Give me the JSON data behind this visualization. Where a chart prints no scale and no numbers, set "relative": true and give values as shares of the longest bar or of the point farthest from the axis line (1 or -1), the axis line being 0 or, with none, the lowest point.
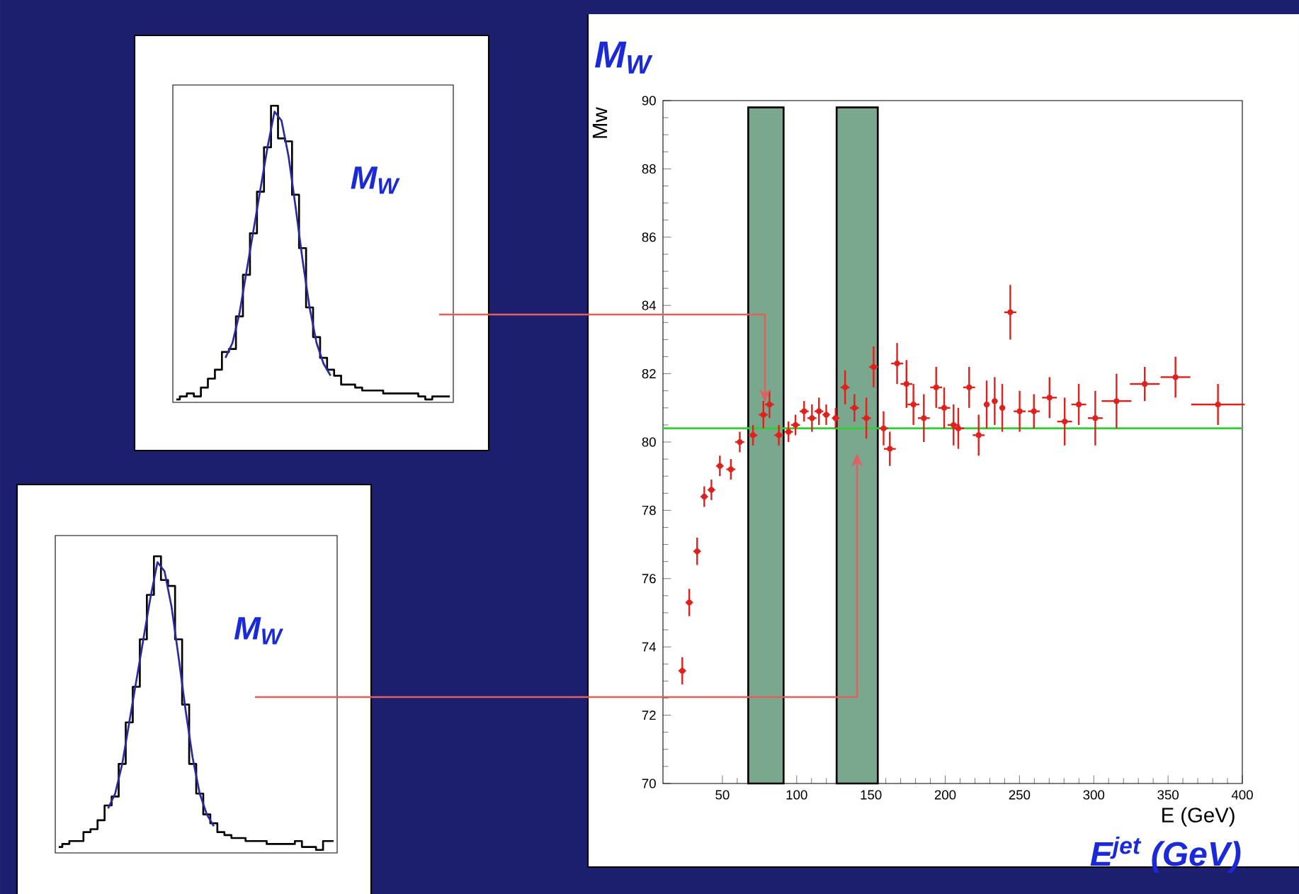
{
  "chart_data": [
    {
      "type": "scatter",
      "title": "M$_{W}$",
      "xlabel": "E (GeV)",
      "ylabel": "Mw",
      "annotations": [
        "E$^{jet}$ (GeV)"
      ],
      "x": [
        23,
        27.7,
        33,
        37.8,
        42.6,
        48.3,
        55.7,
        61.7,
        70.6,
        77.6,
        81.7,
        88,
        94.5,
        99.2,
        105,
        110.3,
        115,
        119.9,
        126.2,
        132.6,
        138.9,
        146.9,
        151.8,
        158.5,
        162.7,
        167.6,
        173.9,
        178.6,
        185.6,
        193.9,
        199.3,
        205.6,
        208.8,
        216.1,
        222.5,
        227.9,
        233.3,
        238.4,
        243.8,
        250.1,
        259.7,
        270.2,
        280.4,
        289.9,
        301,
        315.3,
        334.3,
        355,
        383.6
      ],
      "values": [
        73.3,
        75.3,
        76.8,
        78.4,
        78.6,
        79.3,
        79.2,
        80.0,
        80.2,
        80.8,
        81.1,
        80.2,
        80.3,
        80.5,
        80.9,
        80.7,
        80.9,
        80.8,
        80.7,
        81.6,
        81.0,
        80.7,
        82.2,
        80.4,
        79.8,
        82.3,
        81.7,
        81.1,
        80.7,
        81.6,
        81.0,
        80.5,
        80.4,
        81.6,
        80.2,
        81.1,
        81.2,
        81.0,
        83.8,
        80.9,
        80.9,
        81.3,
        80.6,
        81.1,
        80.7,
        81.2,
        81.7,
        81.9,
        81.1
      ],
      "errors": [
        0.4,
        0.4,
        0.4,
        0.3,
        0.3,
        0.3,
        0.3,
        0.3,
        0.3,
        0.4,
        0.4,
        0.3,
        0.3,
        0.3,
        0.3,
        0.4,
        0.4,
        0.3,
        0.3,
        0.5,
        0.4,
        0.6,
        0.6,
        0.5,
        0.5,
        0.6,
        0.7,
        0.6,
        0.7,
        0.6,
        0.6,
        0.6,
        0.6,
        0.6,
        0.6,
        0.7,
        0.7,
        0.7,
        0.8,
        0.6,
        0.5,
        0.6,
        0.7,
        0.6,
        0.8,
        0.8,
        0.5,
        0.6,
        0.6
      ],
      "xerrors": [
        2.5,
        2.5,
        2.5,
        2.5,
        2.5,
        2.5,
        3,
        3,
        3,
        3,
        3,
        3,
        3,
        3,
        3,
        3,
        3,
        2.5,
        2.5,
        3,
        3,
        3,
        3,
        3,
        4,
        4,
        4,
        4,
        4,
        4,
        4,
        4,
        4,
        4,
        4,
        2,
        2,
        2,
        4,
        4,
        4,
        5,
        5,
        5,
        5,
        10,
        10,
        10,
        18
      ],
      "color": "#e0201c",
      "marker": "circle",
      "xlim": [
        10,
        400
      ],
      "ylim": [
        70,
        90
      ],
      "xticks": [
        50,
        100,
        150,
        200,
        250,
        300,
        350,
        400
      ],
      "yticks": [
        70,
        72,
        74,
        76,
        78,
        80,
        82,
        84,
        86,
        88,
        90
      ],
      "ref_lines": [
        {
          "axis": "y",
          "value": 80.4,
          "color": "#30d030"
        }
      ],
      "bands": [
        {
          "axis": "x",
          "from": 67.4,
          "to": 91.2,
          "color": "#7aa88f"
        },
        {
          "axis": "x",
          "from": 126.9,
          "to": 154.6,
          "color": "#7aa88f"
        }
      ]
    },
    {
      "type": "step",
      "relative": true,
      "annotations": [
        "M$_{W}$"
      ],
      "categories": [
        null,
        null,
        null,
        null,
        null,
        null,
        null,
        null,
        null,
        null,
        null,
        null,
        null,
        null,
        null,
        null,
        null,
        null,
        null,
        null,
        null,
        null,
        null,
        null,
        null,
        null,
        null,
        null,
        null,
        null,
        null,
        null,
        null,
        null,
        null,
        null,
        null,
        null,
        null,
        null
      ],
      "series": [
        {
          "type": "step",
          "color": "#000000",
          "values": [
            0.01,
            0.02,
            0.03,
            0.02,
            0.05,
            0.08,
            0.11,
            0.17,
            0.18,
            0.29,
            0.43,
            0.57,
            0.71,
            0.86,
            1,
            0.89,
            0.88,
            0.7,
            0.52,
            0.32,
            0.22,
            0.15,
            0.11,
            0.09,
            0.06,
            0.06,
            0.05,
            0.04,
            0.04,
            0.04,
            0.03,
            0.03,
            0.03,
            0.03,
            0.03,
            0.02,
            0.01,
            0.02,
            0.02,
            0.02
          ]
        },
        {
          "type": "line",
          "color": "#2a2aa0",
          "values": [
            null,
            null,
            null,
            null,
            null,
            null,
            null,
            0.15,
            0.2,
            0.3,
            0.44,
            0.58,
            0.72,
            0.86,
            0.98,
            0.95,
            0.83,
            0.66,
            0.48,
            0.32,
            0.2,
            0.13,
            0.09,
            null,
            null,
            null,
            null,
            null,
            null,
            null,
            null,
            null,
            null,
            null,
            null,
            null,
            null,
            null,
            null,
            null
          ]
        }
      ]
    },
    {
      "type": "step",
      "relative": true,
      "annotations": [
        "M$_{W}$"
      ],
      "categories": [
        null,
        null,
        null,
        null,
        null,
        null,
        null,
        null,
        null,
        null,
        null,
        null,
        null,
        null,
        null,
        null,
        null,
        null,
        null,
        null,
        null,
        null,
        null,
        null,
        null,
        null,
        null,
        null,
        null,
        null,
        null,
        null,
        null,
        null,
        null,
        null,
        null,
        null,
        null,
        null
      ],
      "series": [
        {
          "type": "step",
          "color": "#000000",
          "values": [
            0.02,
            0.03,
            0.04,
            0.04,
            0.07,
            0.08,
            0.11,
            0.16,
            0.19,
            0.3,
            0.44,
            0.56,
            0.72,
            0.87,
            1,
            0.92,
            0.9,
            0.72,
            0.5,
            0.3,
            0.2,
            0.13,
            0.1,
            0.07,
            0.06,
            0.05,
            0.05,
            0.04,
            0.04,
            0.04,
            0.03,
            0.03,
            0.03,
            0.03,
            0.04,
            0.02,
            0.02,
            0.01,
            0.04,
            0.04
          ]
        },
        {
          "type": "line",
          "color": "#2a2aa0",
          "values": [
            null,
            null,
            null,
            null,
            null,
            null,
            null,
            0.15,
            0.2,
            0.3,
            0.44,
            0.58,
            0.72,
            0.86,
            0.98,
            0.95,
            0.83,
            0.66,
            0.48,
            0.32,
            0.2,
            0.13,
            0.09,
            null,
            null,
            null,
            null,
            null,
            null,
            null,
            null,
            null,
            null,
            null,
            null,
            null,
            null,
            null,
            null,
            null
          ]
        }
      ]
    }
  ]
}
